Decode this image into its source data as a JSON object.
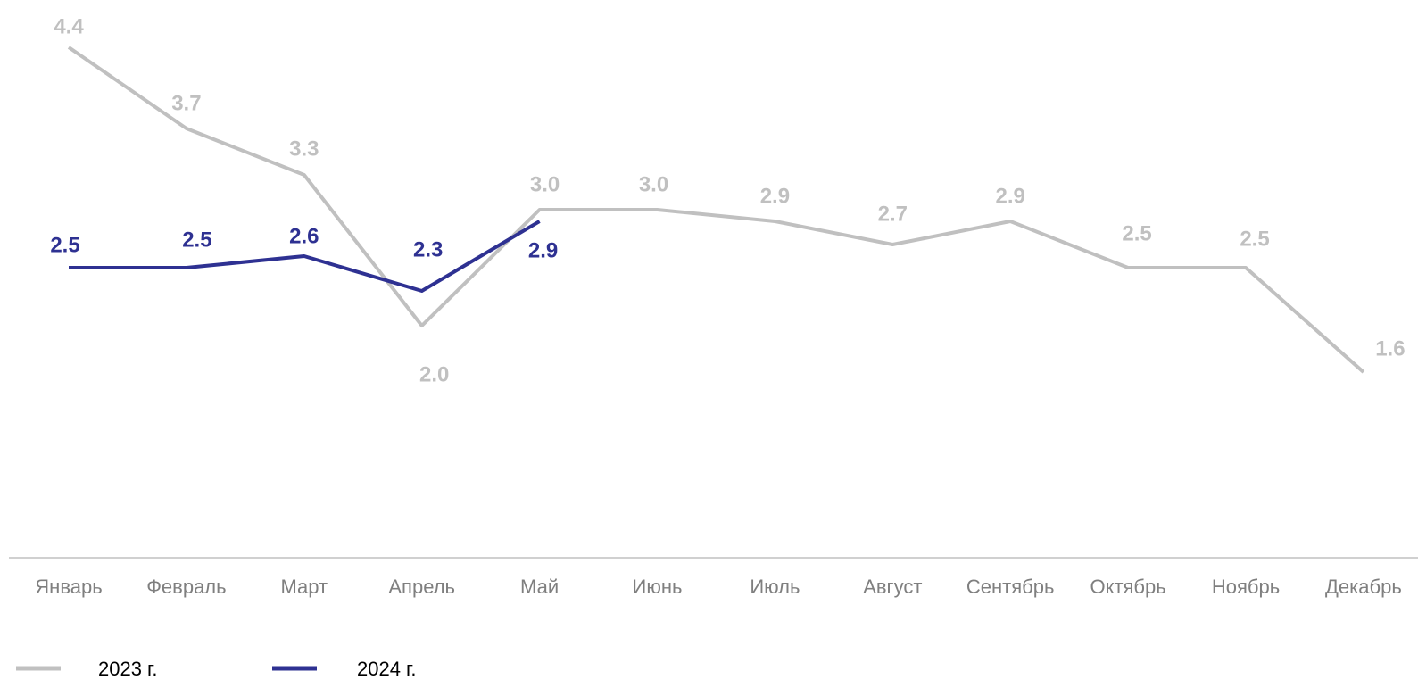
{
  "chart_data": {
    "type": "line",
    "categories": [
      "Январь",
      "Февраль",
      "Март",
      "Апрель",
      "Май",
      "Июнь",
      "Июль",
      "Август",
      "Сентябрь",
      "Октябрь",
      "Ноябрь",
      "Декабрь"
    ],
    "series": [
      {
        "name": "2023 г.",
        "color": "#c0c0c0",
        "values": [
          4.4,
          3.7,
          3.3,
          2.0,
          3.0,
          3.0,
          2.9,
          2.7,
          2.9,
          2.5,
          2.5,
          1.6
        ],
        "value_labels": [
          "4.4",
          "3.7",
          "3.3",
          "2.0",
          "3.0",
          "3.0",
          "2.9",
          "2.7",
          "2.9",
          "2.5",
          "2.5",
          "1.6"
        ]
      },
      {
        "name": "2024 г.",
        "color": "#2e3192",
        "values": [
          2.5,
          2.5,
          2.6,
          2.3,
          2.9,
          null,
          null,
          null,
          null,
          null,
          null,
          null
        ],
        "value_labels": [
          "2.5",
          "2.5",
          "2.6",
          "2.3",
          "2.9",
          null,
          null,
          null,
          null,
          null,
          null,
          null
        ]
      }
    ],
    "ylim": [
      0,
      4.8
    ],
    "grid": false,
    "legend": "bottom-left"
  }
}
